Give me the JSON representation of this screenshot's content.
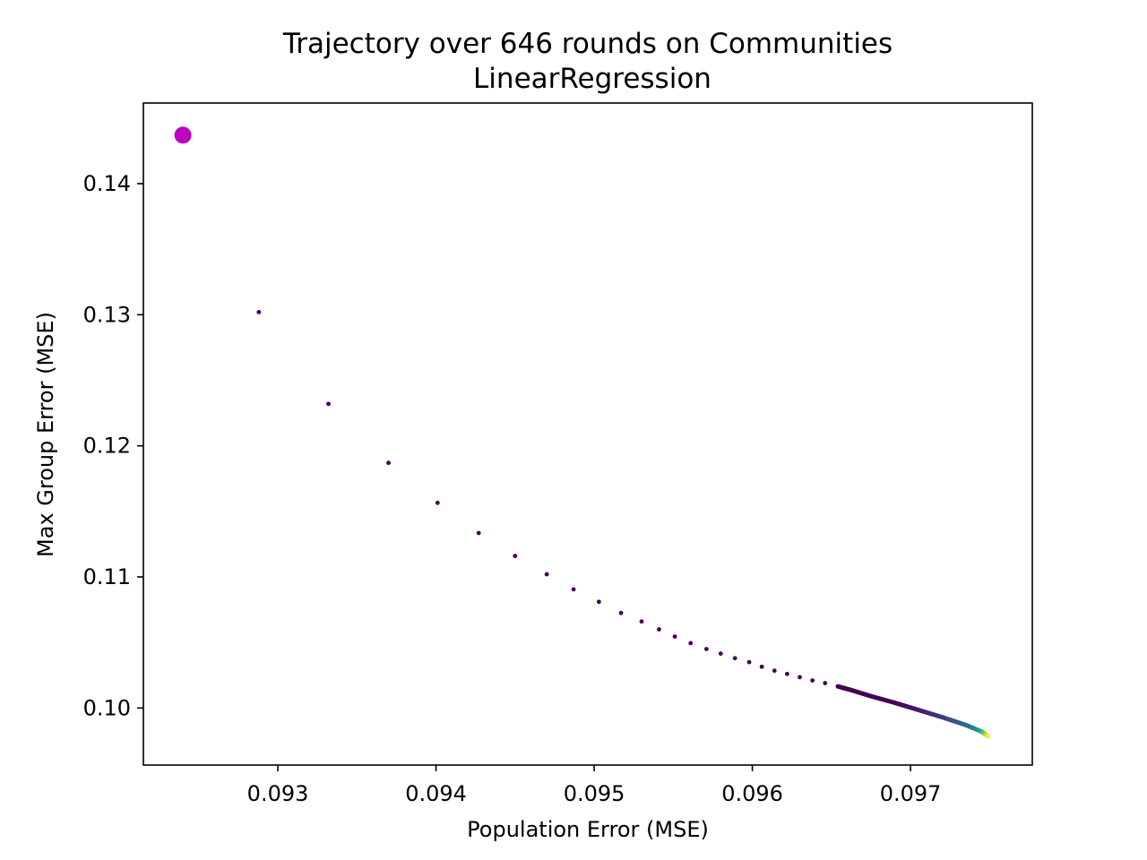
{
  "chart_data": {
    "type": "scatter",
    "title": "Trajectory over 646 rounds on Communities",
    "subtitle": "LinearRegression",
    "xlabel": "Population Error (MSE)",
    "ylabel": "Max Group Error (MSE)",
    "xlim": [
      0.09215,
      0.09777
    ],
    "ylim": [
      0.09565,
      0.14615
    ],
    "xticks": [
      0.093,
      0.094,
      0.095,
      0.096,
      0.097
    ],
    "xtick_labels": [
      "0.093",
      "0.094",
      "0.095",
      "0.096",
      "0.097"
    ],
    "yticks": [
      0.1,
      0.11,
      0.12,
      0.13,
      0.14
    ],
    "ytick_labels": [
      "0.10",
      "0.11",
      "0.12",
      "0.13",
      "0.14"
    ],
    "grid": false,
    "colormap": "viridis",
    "start_point": {
      "x": 0.0924,
      "y": 0.1437,
      "color": "#c000c0"
    },
    "trajectory": {
      "rounds": 646,
      "anchors": [
        [
          0.09288,
          0.1302
        ],
        [
          0.09332,
          0.1232
        ],
        [
          0.0937,
          0.1187
        ],
        [
          0.09401,
          0.11565
        ],
        [
          0.09427,
          0.11335
        ],
        [
          0.0945,
          0.1116
        ],
        [
          0.0947,
          0.1102
        ],
        [
          0.09487,
          0.10905
        ],
        [
          0.09503,
          0.1081
        ],
        [
          0.09517,
          0.10725
        ],
        [
          0.0953,
          0.1066
        ],
        [
          0.09541,
          0.106
        ],
        [
          0.09551,
          0.10545
        ],
        [
          0.09561,
          0.10495
        ],
        [
          0.09571,
          0.1045
        ],
        [
          0.0958,
          0.10415
        ],
        [
          0.09589,
          0.1038
        ],
        [
          0.09598,
          0.1035
        ],
        [
          0.09606,
          0.10315
        ],
        [
          0.09614,
          0.10285
        ],
        [
          0.09622,
          0.1026
        ],
        [
          0.0963,
          0.10235
        ],
        [
          0.09638,
          0.1021
        ],
        [
          0.09646,
          0.1019
        ],
        [
          0.09654,
          0.10165
        ],
        [
          0.09663,
          0.10135
        ],
        [
          0.09675,
          0.1009
        ],
        [
          0.0969,
          0.1004
        ],
        [
          0.09705,
          0.09985
        ],
        [
          0.0972,
          0.0993
        ],
        [
          0.09735,
          0.0987
        ],
        [
          0.09745,
          0.0982
        ],
        [
          0.09749,
          0.09785
        ]
      ]
    }
  }
}
